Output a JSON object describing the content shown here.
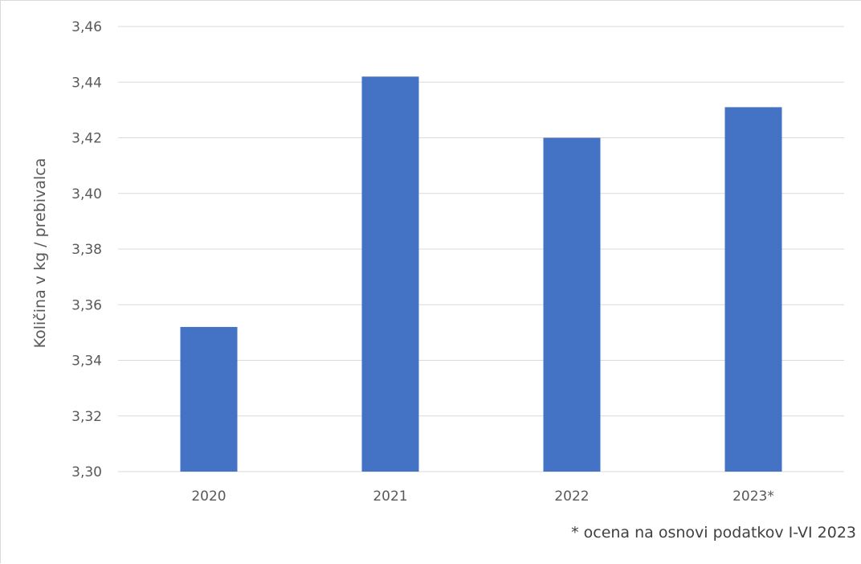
{
  "chart_data": {
    "type": "bar",
    "title": "",
    "xlabel": "",
    "ylabel": "Količina v kg / prebivalca",
    "categories": [
      "2020",
      "2021",
      "2022",
      "2023*"
    ],
    "values": [
      3.352,
      3.442,
      3.42,
      3.431
    ],
    "ylim": [
      3.3,
      3.46
    ],
    "yticks": [
      3.3,
      3.32,
      3.34,
      3.36,
      3.38,
      3.4,
      3.42,
      3.44,
      3.46
    ],
    "ytick_labels": [
      "3,30",
      "3,32",
      "3,34",
      "3,36",
      "3,38",
      "3,40",
      "3,42",
      "3,44",
      "3,46"
    ],
    "grid": true,
    "legend": "none",
    "bar_color": "#4472c4",
    "grid_color": "#d9d9d9",
    "footnote": "* ocena na osnovi podatkov I-VI 2023"
  }
}
